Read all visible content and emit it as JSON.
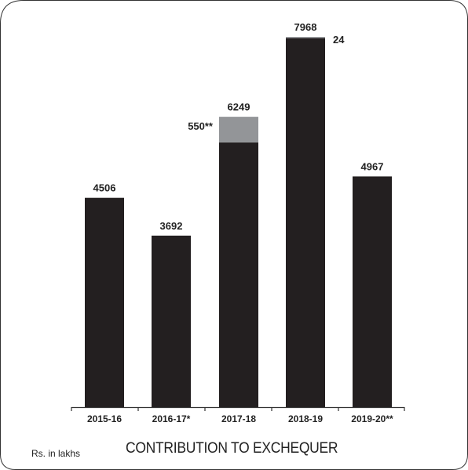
{
  "chart_data": {
    "type": "bar",
    "stacked": true,
    "title": "CONTRIBUTION TO EXCHEQUER",
    "units_label": "Rs. in lakhs",
    "categories": [
      "2015-16",
      "2016-17*",
      "2017-18",
      "2018-19",
      "2019-20**"
    ],
    "totals": [
      "4506",
      "3692",
      "6249",
      "7968",
      "4967"
    ],
    "series": [
      {
        "values": [
          4506,
          3692,
          5699,
          7944,
          4967
        ],
        "color": "#231f20"
      },
      {
        "values": [
          0,
          0,
          550,
          24,
          0
        ],
        "color": "#939598"
      }
    ],
    "segment_labels": [
      {
        "category": "2017-18",
        "text": "550**"
      },
      {
        "category": "2018-19",
        "text": "24"
      }
    ],
    "ylim": [
      0,
      8000
    ],
    "grid": false,
    "legend": "none"
  }
}
